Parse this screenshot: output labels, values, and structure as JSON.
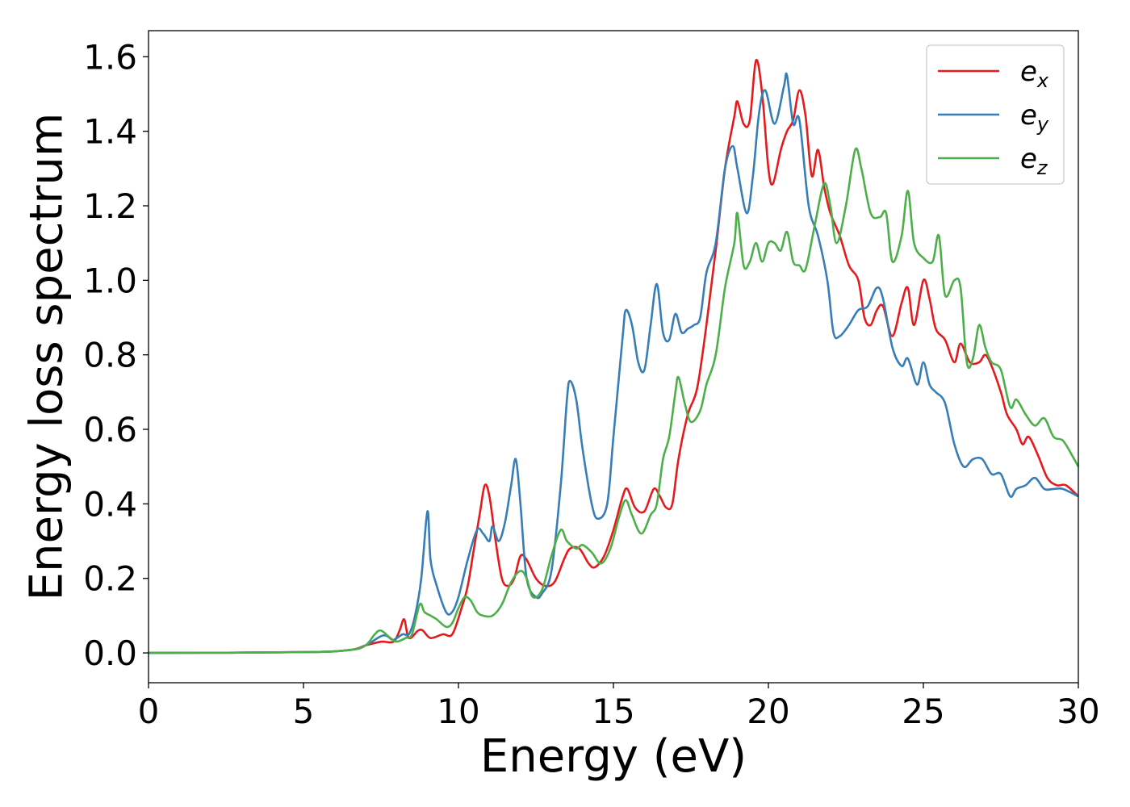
{
  "chart_data": {
    "type": "line",
    "title": "",
    "xlabel": "Energy (eV)",
    "ylabel": "Energy loss spectrum",
    "xlim": [
      0,
      30
    ],
    "ylim": [
      -0.08,
      1.67
    ],
    "xticks": [
      0,
      5,
      10,
      15,
      20,
      25,
      30
    ],
    "xtick_labels": [
      "0",
      "5",
      "10",
      "15",
      "20",
      "25",
      "30"
    ],
    "yticks": [
      0.0,
      0.2,
      0.4,
      0.6,
      0.8,
      1.0,
      1.2,
      1.4,
      1.6
    ],
    "ytick_labels": [
      "0.0",
      "0.2",
      "0.4",
      "0.6",
      "0.8",
      "1.0",
      "1.2",
      "1.4",
      "1.6"
    ],
    "grid": false,
    "legend_position": "top-right",
    "series": [
      {
        "name": "e_x",
        "label_base": "e",
        "label_sub": "x",
        "color": "#e41a1c",
        "points": [
          [
            0,
            0
          ],
          [
            5,
            0.002
          ],
          [
            6.5,
            0.008
          ],
          [
            7,
            0.02
          ],
          [
            7.5,
            0.03
          ],
          [
            7.9,
            0.03
          ],
          [
            8.1,
            0.06
          ],
          [
            8.25,
            0.09
          ],
          [
            8.4,
            0.04
          ],
          [
            8.7,
            0.06
          ],
          [
            8.85,
            0.06
          ],
          [
            9.1,
            0.04
          ],
          [
            9.5,
            0.05
          ],
          [
            9.8,
            0.05
          ],
          [
            10.1,
            0.12
          ],
          [
            10.3,
            0.18
          ],
          [
            10.5,
            0.28
          ],
          [
            10.7,
            0.38
          ],
          [
            10.85,
            0.45
          ],
          [
            11.0,
            0.42
          ],
          [
            11.2,
            0.3
          ],
          [
            11.4,
            0.2
          ],
          [
            11.6,
            0.18
          ],
          [
            11.8,
            0.2
          ],
          [
            12.0,
            0.26
          ],
          [
            12.2,
            0.25
          ],
          [
            12.5,
            0.2
          ],
          [
            12.8,
            0.18
          ],
          [
            13.1,
            0.19
          ],
          [
            13.4,
            0.25
          ],
          [
            13.6,
            0.28
          ],
          [
            13.9,
            0.28
          ],
          [
            14.2,
            0.24
          ],
          [
            14.4,
            0.23
          ],
          [
            14.7,
            0.26
          ],
          [
            15.0,
            0.33
          ],
          [
            15.3,
            0.42
          ],
          [
            15.45,
            0.44
          ],
          [
            15.7,
            0.39
          ],
          [
            16.0,
            0.38
          ],
          [
            16.3,
            0.44
          ],
          [
            16.5,
            0.42
          ],
          [
            16.7,
            0.39
          ],
          [
            16.9,
            0.4
          ],
          [
            17.1,
            0.52
          ],
          [
            17.4,
            0.64
          ],
          [
            17.7,
            0.71
          ],
          [
            18.0,
            0.88
          ],
          [
            18.3,
            1.08
          ],
          [
            18.6,
            1.3
          ],
          [
            18.9,
            1.44
          ],
          [
            19.0,
            1.48
          ],
          [
            19.2,
            1.42
          ],
          [
            19.4,
            1.43
          ],
          [
            19.6,
            1.59
          ],
          [
            19.8,
            1.5
          ],
          [
            20.0,
            1.3
          ],
          [
            20.15,
            1.26
          ],
          [
            20.4,
            1.35
          ],
          [
            20.6,
            1.4
          ],
          [
            20.8,
            1.43
          ],
          [
            21.0,
            1.51
          ],
          [
            21.2,
            1.44
          ],
          [
            21.4,
            1.28
          ],
          [
            21.6,
            1.35
          ],
          [
            21.8,
            1.25
          ],
          [
            22.0,
            1.18
          ],
          [
            22.3,
            1.12
          ],
          [
            22.6,
            1.04
          ],
          [
            22.9,
            1.0
          ],
          [
            23.1,
            0.9
          ],
          [
            23.3,
            0.88
          ],
          [
            23.5,
            0.92
          ],
          [
            23.7,
            0.93
          ],
          [
            24.0,
            0.85
          ],
          [
            24.3,
            0.94
          ],
          [
            24.5,
            0.98
          ],
          [
            24.7,
            0.88
          ],
          [
            25.0,
            1.0
          ],
          [
            25.2,
            0.95
          ],
          [
            25.4,
            0.87
          ],
          [
            25.7,
            0.84
          ],
          [
            26.0,
            0.78
          ],
          [
            26.2,
            0.83
          ],
          [
            26.5,
            0.78
          ],
          [
            26.8,
            0.78
          ],
          [
            27.0,
            0.8
          ],
          [
            27.2,
            0.77
          ],
          [
            27.5,
            0.7
          ],
          [
            27.7,
            0.64
          ],
          [
            28.0,
            0.6
          ],
          [
            28.2,
            0.56
          ],
          [
            28.4,
            0.58
          ],
          [
            28.7,
            0.53
          ],
          [
            29.0,
            0.47
          ],
          [
            29.3,
            0.45
          ],
          [
            29.6,
            0.45
          ],
          [
            30.0,
            0.42
          ]
        ]
      },
      {
        "name": "e_y",
        "label_base": "e",
        "label_sub": "y",
        "color": "#377eb8",
        "points": [
          [
            0,
            0
          ],
          [
            5,
            0.002
          ],
          [
            6.5,
            0.008
          ],
          [
            7,
            0.02
          ],
          [
            7.5,
            0.045
          ],
          [
            7.7,
            0.045
          ],
          [
            7.9,
            0.035
          ],
          [
            8.2,
            0.05
          ],
          [
            8.4,
            0.05
          ],
          [
            8.6,
            0.1
          ],
          [
            8.8,
            0.2
          ],
          [
            9.0,
            0.38
          ],
          [
            9.1,
            0.25
          ],
          [
            9.3,
            0.18
          ],
          [
            9.6,
            0.11
          ],
          [
            9.8,
            0.11
          ],
          [
            10.0,
            0.15
          ],
          [
            10.3,
            0.25
          ],
          [
            10.6,
            0.33
          ],
          [
            10.8,
            0.32
          ],
          [
            11.0,
            0.3
          ],
          [
            11.1,
            0.34
          ],
          [
            11.3,
            0.3
          ],
          [
            11.5,
            0.35
          ],
          [
            11.7,
            0.45
          ],
          [
            11.85,
            0.52
          ],
          [
            12.0,
            0.4
          ],
          [
            12.2,
            0.2
          ],
          [
            12.5,
            0.15
          ],
          [
            12.7,
            0.16
          ],
          [
            13.0,
            0.22
          ],
          [
            13.3,
            0.45
          ],
          [
            13.5,
            0.68
          ],
          [
            13.6,
            0.73
          ],
          [
            13.8,
            0.68
          ],
          [
            14.0,
            0.55
          ],
          [
            14.3,
            0.4
          ],
          [
            14.5,
            0.36
          ],
          [
            14.8,
            0.4
          ],
          [
            15.0,
            0.58
          ],
          [
            15.3,
            0.85
          ],
          [
            15.4,
            0.92
          ],
          [
            15.6,
            0.88
          ],
          [
            15.8,
            0.78
          ],
          [
            16.0,
            0.76
          ],
          [
            16.2,
            0.88
          ],
          [
            16.4,
            0.99
          ],
          [
            16.6,
            0.86
          ],
          [
            16.8,
            0.84
          ],
          [
            17.0,
            0.91
          ],
          [
            17.2,
            0.86
          ],
          [
            17.4,
            0.87
          ],
          [
            17.6,
            0.88
          ],
          [
            17.8,
            0.9
          ],
          [
            18.0,
            1.02
          ],
          [
            18.3,
            1.1
          ],
          [
            18.6,
            1.3
          ],
          [
            18.85,
            1.36
          ],
          [
            19.0,
            1.3
          ],
          [
            19.3,
            1.18
          ],
          [
            19.5,
            1.28
          ],
          [
            19.7,
            1.45
          ],
          [
            19.9,
            1.51
          ],
          [
            20.2,
            1.42
          ],
          [
            20.5,
            1.52
          ],
          [
            20.6,
            1.55
          ],
          [
            20.8,
            1.42
          ],
          [
            21.0,
            1.43
          ],
          [
            21.3,
            1.2
          ],
          [
            21.6,
            1.12
          ],
          [
            21.9,
            1.0
          ],
          [
            22.1,
            0.86
          ],
          [
            22.3,
            0.85
          ],
          [
            22.6,
            0.88
          ],
          [
            22.9,
            0.92
          ],
          [
            23.2,
            0.93
          ],
          [
            23.5,
            0.98
          ],
          [
            23.7,
            0.95
          ],
          [
            24.0,
            0.82
          ],
          [
            24.3,
            0.77
          ],
          [
            24.5,
            0.79
          ],
          [
            24.8,
            0.72
          ],
          [
            25.0,
            0.78
          ],
          [
            25.2,
            0.72
          ],
          [
            25.4,
            0.7
          ],
          [
            25.7,
            0.67
          ],
          [
            26.0,
            0.56
          ],
          [
            26.3,
            0.5
          ],
          [
            26.6,
            0.52
          ],
          [
            26.9,
            0.52
          ],
          [
            27.2,
            0.48
          ],
          [
            27.5,
            0.48
          ],
          [
            27.8,
            0.42
          ],
          [
            28.0,
            0.44
          ],
          [
            28.3,
            0.45
          ],
          [
            28.6,
            0.47
          ],
          [
            28.9,
            0.44
          ],
          [
            29.2,
            0.44
          ],
          [
            29.5,
            0.44
          ],
          [
            30.0,
            0.42
          ]
        ]
      },
      {
        "name": "e_z",
        "label_base": "e",
        "label_sub": "z",
        "color": "#4daf4a",
        "points": [
          [
            0,
            0
          ],
          [
            5,
            0.002
          ],
          [
            6.5,
            0.008
          ],
          [
            7,
            0.02
          ],
          [
            7.3,
            0.05
          ],
          [
            7.5,
            0.06
          ],
          [
            7.8,
            0.04
          ],
          [
            8.0,
            0.03
          ],
          [
            8.3,
            0.04
          ],
          [
            8.5,
            0.05
          ],
          [
            8.75,
            0.13
          ],
          [
            8.9,
            0.11
          ],
          [
            9.1,
            0.1
          ],
          [
            9.3,
            0.09
          ],
          [
            9.6,
            0.07
          ],
          [
            9.8,
            0.08
          ],
          [
            10.0,
            0.12
          ],
          [
            10.2,
            0.15
          ],
          [
            10.4,
            0.14
          ],
          [
            10.6,
            0.11
          ],
          [
            10.8,
            0.1
          ],
          [
            11.1,
            0.1
          ],
          [
            11.4,
            0.13
          ],
          [
            11.7,
            0.19
          ],
          [
            12.0,
            0.22
          ],
          [
            12.2,
            0.2
          ],
          [
            12.4,
            0.15
          ],
          [
            12.7,
            0.17
          ],
          [
            13.0,
            0.26
          ],
          [
            13.3,
            0.33
          ],
          [
            13.5,
            0.3
          ],
          [
            13.8,
            0.28
          ],
          [
            14.0,
            0.29
          ],
          [
            14.3,
            0.27
          ],
          [
            14.6,
            0.24
          ],
          [
            14.9,
            0.28
          ],
          [
            15.2,
            0.37
          ],
          [
            15.4,
            0.41
          ],
          [
            15.6,
            0.37
          ],
          [
            15.9,
            0.32
          ],
          [
            16.2,
            0.37
          ],
          [
            16.4,
            0.4
          ],
          [
            16.6,
            0.52
          ],
          [
            16.8,
            0.58
          ],
          [
            17.0,
            0.7
          ],
          [
            17.1,
            0.74
          ],
          [
            17.3,
            0.67
          ],
          [
            17.5,
            0.62
          ],
          [
            17.8,
            0.65
          ],
          [
            18.0,
            0.72
          ],
          [
            18.3,
            0.8
          ],
          [
            18.6,
            0.98
          ],
          [
            18.9,
            1.1
          ],
          [
            19.0,
            1.18
          ],
          [
            19.2,
            1.04
          ],
          [
            19.4,
            1.05
          ],
          [
            19.6,
            1.1
          ],
          [
            19.8,
            1.05
          ],
          [
            20.0,
            1.1
          ],
          [
            20.2,
            1.1
          ],
          [
            20.4,
            1.08
          ],
          [
            20.6,
            1.13
          ],
          [
            20.8,
            1.05
          ],
          [
            21.0,
            1.04
          ],
          [
            21.2,
            1.03
          ],
          [
            21.5,
            1.15
          ],
          [
            21.8,
            1.26
          ],
          [
            22.0,
            1.2
          ],
          [
            22.2,
            1.1
          ],
          [
            22.5,
            1.2
          ],
          [
            22.8,
            1.35
          ],
          [
            23.0,
            1.3
          ],
          [
            23.3,
            1.18
          ],
          [
            23.6,
            1.17
          ],
          [
            23.8,
            1.18
          ],
          [
            24.0,
            1.05
          ],
          [
            24.3,
            1.12
          ],
          [
            24.5,
            1.24
          ],
          [
            24.7,
            1.1
          ],
          [
            25.0,
            1.06
          ],
          [
            25.3,
            1.05
          ],
          [
            25.5,
            1.12
          ],
          [
            25.7,
            0.96
          ],
          [
            26.0,
            1.0
          ],
          [
            26.2,
            0.98
          ],
          [
            26.4,
            0.78
          ],
          [
            26.6,
            0.79
          ],
          [
            26.8,
            0.88
          ],
          [
            27.0,
            0.82
          ],
          [
            27.2,
            0.78
          ],
          [
            27.5,
            0.76
          ],
          [
            27.8,
            0.66
          ],
          [
            28.0,
            0.68
          ],
          [
            28.3,
            0.64
          ],
          [
            28.6,
            0.61
          ],
          [
            28.9,
            0.63
          ],
          [
            29.2,
            0.58
          ],
          [
            29.5,
            0.57
          ],
          [
            29.8,
            0.53
          ],
          [
            30.0,
            0.5
          ]
        ]
      }
    ]
  }
}
